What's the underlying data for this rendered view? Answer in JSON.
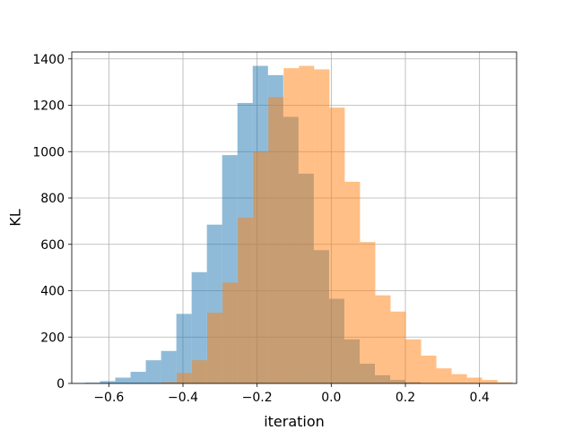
{
  "chart_data": {
    "type": "bar",
    "subtype": "overlapping-histogram",
    "title": "",
    "xlabel": "iteration",
    "ylabel": "KL",
    "xlim": [
      -0.7,
      0.5
    ],
    "ylim": [
      0,
      1430
    ],
    "xticks": [
      -0.6,
      -0.4,
      -0.2,
      0.0,
      0.2,
      0.4
    ],
    "xtick_labels": [
      "−0.6",
      "−0.4",
      "−0.2",
      "0.0",
      "0.2",
      "0.4"
    ],
    "yticks": [
      0,
      200,
      400,
      600,
      800,
      1000,
      1200,
      1400
    ],
    "ytick_labels": [
      "0",
      "200",
      "400",
      "600",
      "800",
      "1000",
      "1200",
      "1400"
    ],
    "grid": true,
    "legend": "none",
    "series": [
      {
        "color": "#1f77b4",
        "opacity": 0.5,
        "bin_start": -0.665,
        "bin_width": 0.0412,
        "counts": [
          3,
          10,
          25,
          50,
          100,
          140,
          300,
          480,
          685,
          985,
          1210,
          1370,
          1330,
          1150,
          905,
          575,
          365,
          190,
          85,
          35,
          15,
          5
        ]
      },
      {
        "color": "#ff7f0e",
        "opacity": 0.5,
        "bin_start": -0.458,
        "bin_width": 0.0412,
        "counts": [
          5,
          45,
          100,
          305,
          435,
          715,
          1000,
          1235,
          1360,
          1370,
          1355,
          1190,
          870,
          610,
          380,
          310,
          190,
          120,
          65,
          40,
          25,
          15,
          5
        ]
      }
    ]
  }
}
